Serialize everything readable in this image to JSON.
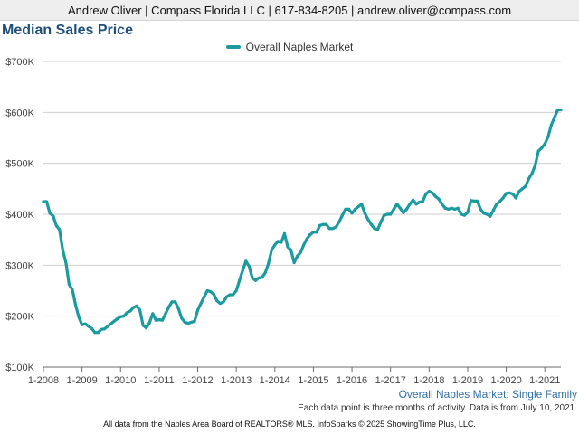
{
  "header": {
    "contact": "Andrew Oliver | Compass Florida LLC | 617-834-8205 | andrew.oliver@compass.com"
  },
  "colors": {
    "title": "#1f4f7a",
    "series": "#1b9aa0",
    "subtitle": "#2e6ea6",
    "grid": "#cfcfcf",
    "axis": "#6b6b6b"
  },
  "footnote": "Each data point is three months of activity. Data is from July 10, 2021.",
  "footer": "All data from the Naples Area Board of REALTORS® MLS. InfoSparks © 2025 ShowingTime Plus, LLC.",
  "chart_data": {
    "type": "line",
    "title": "Median Sales Price",
    "subtitle": "Overall Naples Market: Single Family",
    "legend_position": "top-center",
    "grid": true,
    "ylim": [
      100000,
      700000
    ],
    "y_ticks": [
      {
        "value": 100000,
        "label": "$100K"
      },
      {
        "value": 200000,
        "label": "$200K"
      },
      {
        "value": 300000,
        "label": "$300K"
      },
      {
        "value": 400000,
        "label": "$400K"
      },
      {
        "value": 500000,
        "label": "$500K"
      },
      {
        "value": 600000,
        "label": "$600K"
      },
      {
        "value": 700000,
        "label": "$700K"
      }
    ],
    "x_range": [
      "2008-01",
      "2021-06"
    ],
    "x_ticks": [
      {
        "value": "2008-01",
        "label": "1-2008"
      },
      {
        "value": "2009-01",
        "label": "1-2009"
      },
      {
        "value": "2010-01",
        "label": "1-2010"
      },
      {
        "value": "2011-01",
        "label": "1-2011"
      },
      {
        "value": "2012-01",
        "label": "1-2012"
      },
      {
        "value": "2013-01",
        "label": "1-2013"
      },
      {
        "value": "2014-01",
        "label": "1-2014"
      },
      {
        "value": "2015-01",
        "label": "1-2015"
      },
      {
        "value": "2016-01",
        "label": "1-2016"
      },
      {
        "value": "2017-01",
        "label": "1-2017"
      },
      {
        "value": "2018-01",
        "label": "1-2018"
      },
      {
        "value": "2019-01",
        "label": "1-2019"
      },
      {
        "value": "2020-01",
        "label": "1-2020"
      },
      {
        "value": "2021-01",
        "label": "1-2021"
      }
    ],
    "series": [
      {
        "name": "Overall Naples Market",
        "x": [
          "2008-01",
          "2008-02",
          "2008-03",
          "2008-04",
          "2008-05",
          "2008-06",
          "2008-07",
          "2008-08",
          "2008-09",
          "2008-10",
          "2008-11",
          "2008-12",
          "2009-01",
          "2009-02",
          "2009-03",
          "2009-04",
          "2009-05",
          "2009-06",
          "2009-07",
          "2009-08",
          "2009-09",
          "2009-10",
          "2009-11",
          "2009-12",
          "2010-01",
          "2010-02",
          "2010-03",
          "2010-04",
          "2010-05",
          "2010-06",
          "2010-07",
          "2010-08",
          "2010-09",
          "2010-10",
          "2010-11",
          "2010-12",
          "2011-01",
          "2011-02",
          "2011-03",
          "2011-04",
          "2011-05",
          "2011-06",
          "2011-07",
          "2011-08",
          "2011-09",
          "2011-10",
          "2011-11",
          "2011-12",
          "2012-01",
          "2012-02",
          "2012-03",
          "2012-04",
          "2012-05",
          "2012-06",
          "2012-07",
          "2012-08",
          "2012-09",
          "2012-10",
          "2012-11",
          "2012-12",
          "2013-01",
          "2013-02",
          "2013-03",
          "2013-04",
          "2013-05",
          "2013-06",
          "2013-07",
          "2013-08",
          "2013-09",
          "2013-10",
          "2013-11",
          "2013-12",
          "2014-01",
          "2014-02",
          "2014-03",
          "2014-04",
          "2014-05",
          "2014-06",
          "2014-07",
          "2014-08",
          "2014-09",
          "2014-10",
          "2014-11",
          "2014-12",
          "2015-01",
          "2015-02",
          "2015-03",
          "2015-04",
          "2015-05",
          "2015-06",
          "2015-07",
          "2015-08",
          "2015-09",
          "2015-10",
          "2015-11",
          "2015-12",
          "2016-01",
          "2016-02",
          "2016-03",
          "2016-04",
          "2016-05",
          "2016-06",
          "2016-07",
          "2016-08",
          "2016-09",
          "2016-10",
          "2016-11",
          "2016-12",
          "2017-01",
          "2017-02",
          "2017-03",
          "2017-04",
          "2017-05",
          "2017-06",
          "2017-07",
          "2017-08",
          "2017-09",
          "2017-10",
          "2017-11",
          "2017-12",
          "2018-01",
          "2018-02",
          "2018-03",
          "2018-04",
          "2018-05",
          "2018-06",
          "2018-07",
          "2018-08",
          "2018-09",
          "2018-10",
          "2018-11",
          "2018-12",
          "2019-01",
          "2019-02",
          "2019-03",
          "2019-04",
          "2019-05",
          "2019-06",
          "2019-07",
          "2019-08",
          "2019-09",
          "2019-10",
          "2019-11",
          "2019-12",
          "2020-01",
          "2020-02",
          "2020-03",
          "2020-04",
          "2020-05",
          "2020-06",
          "2020-07",
          "2020-08",
          "2020-09",
          "2020-10",
          "2020-11",
          "2020-12",
          "2021-01",
          "2021-02",
          "2021-03",
          "2021-04",
          "2021-05",
          "2021-06"
        ],
        "values": [
          425000,
          425000,
          402000,
          397000,
          378000,
          370000,
          330000,
          305000,
          262000,
          252000,
          222000,
          198000,
          183000,
          185000,
          180000,
          176000,
          168000,
          168000,
          174000,
          175000,
          180000,
          185000,
          190000,
          195000,
          199000,
          200000,
          207000,
          210000,
          217000,
          220000,
          212000,
          182000,
          177000,
          187000,
          205000,
          192000,
          193000,
          192000,
          205000,
          218000,
          228000,
          228000,
          215000,
          196000,
          188000,
          186000,
          188000,
          190000,
          212000,
          225000,
          238000,
          250000,
          248000,
          243000,
          230000,
          225000,
          228000,
          238000,
          242000,
          242000,
          250000,
          270000,
          290000,
          308000,
          298000,
          275000,
          270000,
          275000,
          276000,
          285000,
          303000,
          330000,
          340000,
          347000,
          345000,
          362000,
          336000,
          330000,
          305000,
          318000,
          325000,
          340000,
          352000,
          360000,
          365000,
          365000,
          378000,
          380000,
          380000,
          372000,
          372000,
          375000,
          385000,
          398000,
          410000,
          410000,
          402000,
          410000,
          415000,
          420000,
          402000,
          390000,
          380000,
          372000,
          370000,
          385000,
          398000,
          400000,
          400000,
          410000,
          420000,
          412000,
          403000,
          410000,
          420000,
          428000,
          420000,
          424000,
          425000,
          440000,
          445000,
          442000,
          435000,
          430000,
          420000,
          412000,
          410000,
          412000,
          410000,
          412000,
          400000,
          398000,
          404000,
          427000,
          426000,
          426000,
          410000,
          402000,
          400000,
          396000,
          408000,
          420000,
          425000,
          432000,
          441000,
          442000,
          440000,
          432000,
          445000,
          450000,
          455000,
          470000,
          480000,
          496000,
          524000,
          530000,
          538000,
          552000,
          575000,
          590000,
          605000,
          605000
        ]
      }
    ]
  }
}
